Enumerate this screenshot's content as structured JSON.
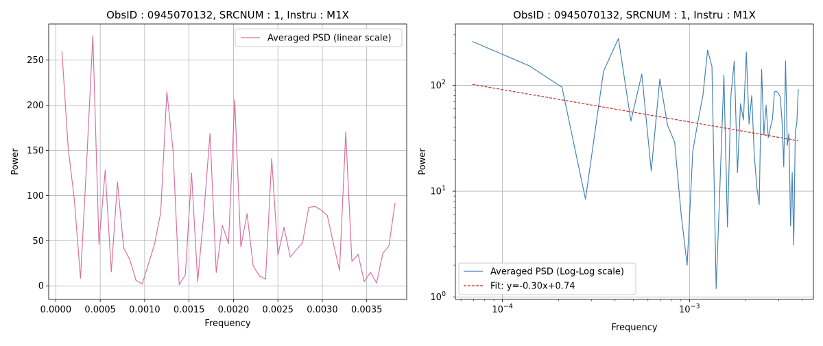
{
  "chart_data": [
    {
      "type": "line",
      "title": "ObsID : 0945070132, SRCNUM : 1, Instru : M1X",
      "xlabel": "Frequency",
      "ylabel": "Power",
      "xlim": [
        -8e-05,
        0.00395
      ],
      "ylim": [
        -15,
        290
      ],
      "xticks": [
        0.0,
        0.0005,
        0.001,
        0.0015,
        0.002,
        0.0025,
        0.003,
        0.0035
      ],
      "xtick_labels": [
        "0.0000",
        "0.0005",
        "0.0010",
        "0.0015",
        "0.0020",
        "0.0025",
        "0.0030",
        "0.0035"
      ],
      "yticks": [
        0,
        50,
        100,
        150,
        200,
        250
      ],
      "ytick_labels": [
        "0",
        "50",
        "100",
        "150",
        "200",
        "250"
      ],
      "grid": true,
      "legend_position": "top-right",
      "series": [
        {
          "name": "Averaged PSD (linear scale)",
          "color": "#d9719b",
          "x": [
            6.9e-05,
            0.000139,
            0.000208,
            0.000278,
            0.000347,
            0.000417,
            0.000486,
            0.000556,
            0.000625,
            0.000694,
            0.000764,
            0.000833,
            0.000903,
            0.000972,
            0.001042,
            0.001111,
            0.001181,
            0.00125,
            0.001319,
            0.001389,
            0.001458,
            0.001528,
            0.001597,
            0.001667,
            0.001736,
            0.001806,
            0.001875,
            0.001944,
            0.002014,
            0.002083,
            0.002153,
            0.002222,
            0.002292,
            0.002361,
            0.002431,
            0.0025,
            0.002569,
            0.002639,
            0.002708,
            0.002778,
            0.002847,
            0.002917,
            0.002986,
            0.003056,
            0.003125,
            0.003194,
            0.003264,
            0.003333,
            0.003403,
            0.003472,
            0.003542,
            0.003611,
            0.003681,
            0.00375,
            0.003819
          ],
          "values": [
            260,
            153,
            96,
            8.4,
            136,
            277,
            46,
            128,
            15.5,
            115,
            42,
            29,
            6,
            2,
            24,
            46,
            81,
            215,
            151,
            1.2,
            12,
            125,
            4.6,
            81,
            169,
            15,
            67,
            47,
            206,
            43,
            80,
            22,
            11,
            7.5,
            141,
            34,
            65,
            32,
            40,
            48,
            87,
            88,
            84,
            78,
            47,
            17,
            170,
            27,
            35,
            4.7,
            15,
            3.1,
            36,
            44,
            92
          ]
        }
      ]
    },
    {
      "type": "line",
      "title": "ObsID : 0945070132, SRCNUM : 1, Instru : M1X",
      "xlabel": "Frequency",
      "ylabel": "Power",
      "xscale": "log",
      "yscale": "log",
      "xlim": [
        5.6e-05,
        0.0046
      ],
      "ylim": [
        0.95,
        380
      ],
      "xticks": [
        0.0001,
        0.001
      ],
      "xtick_labels": [
        "10",
        "10"
      ],
      "xtick_exponents": [
        "−4",
        "−3"
      ],
      "yticks": [
        1,
        10,
        100
      ],
      "ytick_labels": [
        "10",
        "10",
        "10"
      ],
      "ytick_exponents": [
        "0",
        "1",
        "2"
      ],
      "grid": true,
      "legend_position": "bottom-left",
      "series": [
        {
          "name": "Averaged PSD (Log-Log scale)",
          "color": "#4682b4",
          "style": "solid",
          "x": [
            6.9e-05,
            0.000139,
            0.000208,
            0.000278,
            0.000347,
            0.000417,
            0.000486,
            0.000556,
            0.000625,
            0.000694,
            0.000764,
            0.000833,
            0.000903,
            0.000972,
            0.001042,
            0.001111,
            0.001181,
            0.00125,
            0.001319,
            0.001389,
            0.001458,
            0.001528,
            0.001597,
            0.001667,
            0.001736,
            0.001806,
            0.001875,
            0.001944,
            0.002014,
            0.002083,
            0.002153,
            0.002222,
            0.002292,
            0.002361,
            0.002431,
            0.0025,
            0.002569,
            0.002639,
            0.002708,
            0.002778,
            0.002847,
            0.002917,
            0.002986,
            0.003056,
            0.003125,
            0.003194,
            0.003264,
            0.003333,
            0.003403,
            0.003472,
            0.003542,
            0.003611,
            0.003681,
            0.00375,
            0.003819
          ],
          "values": [
            260,
            153,
            96,
            8.4,
            136,
            277,
            46,
            128,
            15.5,
            115,
            42,
            29,
            6,
            2,
            24,
            46,
            81,
            215,
            151,
            1.2,
            12,
            125,
            4.6,
            81,
            169,
            15,
            67,
            47,
            206,
            43,
            80,
            22,
            11,
            7.5,
            141,
            34,
            65,
            32,
            40,
            48,
            87,
            88,
            84,
            78,
            47,
            17,
            170,
            27,
            35,
            4.7,
            15,
            3.1,
            36,
            44,
            92
          ]
        },
        {
          "name": "Fit: y=-0.30x+0.74",
          "color": "#c62828",
          "style": "dashed",
          "x": [
            6.9e-05,
            0.003819
          ],
          "values": [
            102,
            30
          ]
        }
      ]
    }
  ]
}
